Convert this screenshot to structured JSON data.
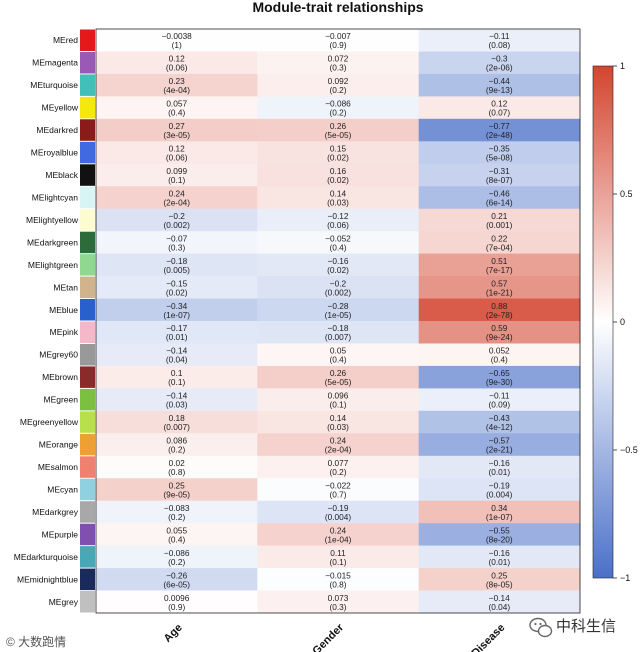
{
  "chart_data": {
    "type": "heatmap",
    "title": "Module-trait relationships",
    "columns": [
      "Age",
      "Gender",
      "Disease"
    ],
    "rows": [
      {
        "name": "MEred",
        "color": "#e31a1c",
        "values": [
          -0.0038,
          -0.007,
          -0.11
        ],
        "labels": [
          "−0.0038",
          "−0.007",
          "−0.11"
        ],
        "pvalues": [
          "(1)",
          "(0.9)",
          "(0.08)"
        ]
      },
      {
        "name": "MEmagenta",
        "color": "#9b59b6",
        "values": [
          0.12,
          0.072,
          -0.3
        ],
        "labels": [
          "0.12",
          "0.072",
          "−0.3"
        ],
        "pvalues": [
          "(0.06)",
          "(0.3)",
          "(2e-06)"
        ]
      },
      {
        "name": "MEturquoise",
        "color": "#40c0b8",
        "values": [
          0.23,
          0.092,
          -0.44
        ],
        "labels": [
          "0.23",
          "0.092",
          "−0.44"
        ],
        "pvalues": [
          "(4e-04)",
          "(0.2)",
          "(9e-13)"
        ]
      },
      {
        "name": "MEyellow",
        "color": "#f4e80c",
        "values": [
          0.057,
          -0.086,
          0.12
        ],
        "labels": [
          "0.057",
          "−0.086",
          "0.12"
        ],
        "pvalues": [
          "(0.4)",
          "(0.2)",
          "(0.07)"
        ]
      },
      {
        "name": "MEdarkred",
        "color": "#8b1a1a",
        "values": [
          0.27,
          0.26,
          -0.77
        ],
        "labels": [
          "0.27",
          "0.26",
          "−0.77"
        ],
        "pvalues": [
          "(3e-05)",
          "(5e-05)",
          "(2e-48)"
        ]
      },
      {
        "name": "MEroyalblue",
        "color": "#4169e1",
        "values": [
          0.12,
          0.15,
          -0.35
        ],
        "labels": [
          "0.12",
          "0.15",
          "−0.35"
        ],
        "pvalues": [
          "(0.06)",
          "(0.02)",
          "(5e-08)"
        ]
      },
      {
        "name": "MEblack",
        "color": "#111111",
        "values": [
          0.099,
          0.16,
          -0.31
        ],
        "labels": [
          "0.099",
          "0.16",
          "−0.31"
        ],
        "pvalues": [
          "(0.1)",
          "(0.02)",
          "(8e-07)"
        ]
      },
      {
        "name": "MElightcyan",
        "color": "#d8f4f4",
        "values": [
          0.24,
          0.14,
          -0.46
        ],
        "labels": [
          "0.24",
          "0.14",
          "−0.46"
        ],
        "pvalues": [
          "(2e-04)",
          "(0.03)",
          "(6e-14)"
        ]
      },
      {
        "name": "MElightyellow",
        "color": "#fdfbd0",
        "values": [
          -0.2,
          -0.12,
          0.21
        ],
        "labels": [
          "−0.2",
          "−0.12",
          "0.21"
        ],
        "pvalues": [
          "(0.002)",
          "(0.06)",
          "(0.001)"
        ]
      },
      {
        "name": "MEdarkgreen",
        "color": "#2e6b3a",
        "values": [
          -0.07,
          -0.052,
          0.22
        ],
        "labels": [
          "−0.07",
          "−0.052",
          "0.22"
        ],
        "pvalues": [
          "(0.3)",
          "(0.4)",
          "(7e-04)"
        ]
      },
      {
        "name": "MElightgreen",
        "color": "#90d890",
        "values": [
          -0.18,
          -0.16,
          0.51
        ],
        "labels": [
          "−0.18",
          "−0.16",
          "0.51"
        ],
        "pvalues": [
          "(0.005)",
          "(0.02)",
          "(7e-17)"
        ]
      },
      {
        "name": "MEtan",
        "color": "#d2b48c",
        "values": [
          -0.15,
          -0.2,
          0.57
        ],
        "labels": [
          "−0.15",
          "−0.2",
          "0.57"
        ],
        "pvalues": [
          "(0.02)",
          "(0.002)",
          "(1e-21)"
        ]
      },
      {
        "name": "MEblue",
        "color": "#2a5fd0",
        "values": [
          -0.34,
          -0.28,
          0.88
        ],
        "labels": [
          "−0.34",
          "−0.28",
          "0.88"
        ],
        "pvalues": [
          "(1e-07)",
          "(1e-05)",
          "(2e-78)"
        ]
      },
      {
        "name": "MEpink",
        "color": "#f4b8c8",
        "values": [
          -0.17,
          -0.18,
          0.59
        ],
        "labels": [
          "−0.17",
          "−0.18",
          "0.59"
        ],
        "pvalues": [
          "(0.01)",
          "(0.007)",
          "(9e-24)"
        ]
      },
      {
        "name": "MEgrey60",
        "color": "#999999",
        "values": [
          -0.14,
          0.05,
          0.052
        ],
        "labels": [
          "−0.14",
          "0.05",
          "0.052"
        ],
        "pvalues": [
          "(0.04)",
          "(0.4)",
          "(0.4)"
        ]
      },
      {
        "name": "MEbrown",
        "color": "#8b2a2a",
        "values": [
          0.1,
          0.26,
          -0.65
        ],
        "labels": [
          "0.1",
          "0.26",
          "−0.65"
        ],
        "pvalues": [
          "(0.1)",
          "(5e-05)",
          "(9e-30)"
        ]
      },
      {
        "name": "MEgreen",
        "color": "#7cc040",
        "values": [
          -0.14,
          0.096,
          -0.11
        ],
        "labels": [
          "−0.14",
          "0.096",
          "−0.11"
        ],
        "pvalues": [
          "(0.03)",
          "(0.1)",
          "(0.09)"
        ]
      },
      {
        "name": "MEgreenyellow",
        "color": "#b8e04a",
        "values": [
          0.18,
          0.14,
          -0.43
        ],
        "labels": [
          "0.18",
          "0.14",
          "−0.43"
        ],
        "pvalues": [
          "(0.007)",
          "(0.03)",
          "(4e-12)"
        ]
      },
      {
        "name": "MEorange",
        "color": "#f0a030",
        "values": [
          0.086,
          0.24,
          -0.57
        ],
        "labels": [
          "0.086",
          "0.24",
          "−0.57"
        ],
        "pvalues": [
          "(0.2)",
          "(2e-04)",
          "(2e-21)"
        ]
      },
      {
        "name": "MEsalmon",
        "color": "#f08070",
        "values": [
          0.02,
          0.077,
          -0.16
        ],
        "labels": [
          "0.02",
          "0.077",
          "−0.16"
        ],
        "pvalues": [
          "(0.8)",
          "(0.2)",
          "(0.01)"
        ]
      },
      {
        "name": "MEcyan",
        "color": "#90d0e0",
        "values": [
          0.25,
          -0.022,
          -0.19
        ],
        "labels": [
          "0.25",
          "−0.022",
          "−0.19"
        ],
        "pvalues": [
          "(9e-05)",
          "(0.7)",
          "(0.004)"
        ]
      },
      {
        "name": "MEdarkgrey",
        "color": "#a8a8a8",
        "values": [
          -0.083,
          -0.19,
          0.34
        ],
        "labels": [
          "−0.083",
          "−0.19",
          "0.34"
        ],
        "pvalues": [
          "(0.2)",
          "(0.004)",
          "(1e-07)"
        ]
      },
      {
        "name": "MEpurple",
        "color": "#8050b0",
        "values": [
          0.055,
          0.24,
          -0.55
        ],
        "labels": [
          "0.055",
          "0.24",
          "−0.55"
        ],
        "pvalues": [
          "(0.4)",
          "(1e-04)",
          "(8e-20)"
        ]
      },
      {
        "name": "MEdarkturquoise",
        "color": "#48a8b8",
        "values": [
          -0.086,
          0.11,
          -0.16
        ],
        "labels": [
          "−0.086",
          "0.11",
          "−0.16"
        ],
        "pvalues": [
          "(0.2)",
          "(0.1)",
          "(0.01)"
        ]
      },
      {
        "name": "MEmidnightblue",
        "color": "#1a2a5a",
        "values": [
          -0.26,
          -0.015,
          0.25
        ],
        "labels": [
          "−0.26",
          "−0.015",
          "0.25"
        ],
        "pvalues": [
          "(6e-05)",
          "(0.8)",
          "(8e-05)"
        ]
      },
      {
        "name": "MEgrey",
        "color": "#c0c0c0",
        "values": [
          0.0096,
          0.073,
          -0.14
        ],
        "labels": [
          "0.0096",
          "0.073",
          "−0.14"
        ],
        "pvalues": [
          "(0.9)",
          "(0.3)",
          "(0.04)"
        ]
      }
    ],
    "colorbar": {
      "range": [
        -1,
        1
      ],
      "ticks": [
        1,
        0.5,
        0,
        -0.5,
        -1
      ],
      "tick_labels": [
        "1",
        "0.5",
        "0",
        "−0.5",
        "−1"
      ],
      "low_color": "#4a70c8",
      "mid_color": "#ffffff",
      "high_color": "#d44530"
    }
  },
  "watermarks": {
    "left": "© 大数跑情",
    "right": "中科生信"
  }
}
